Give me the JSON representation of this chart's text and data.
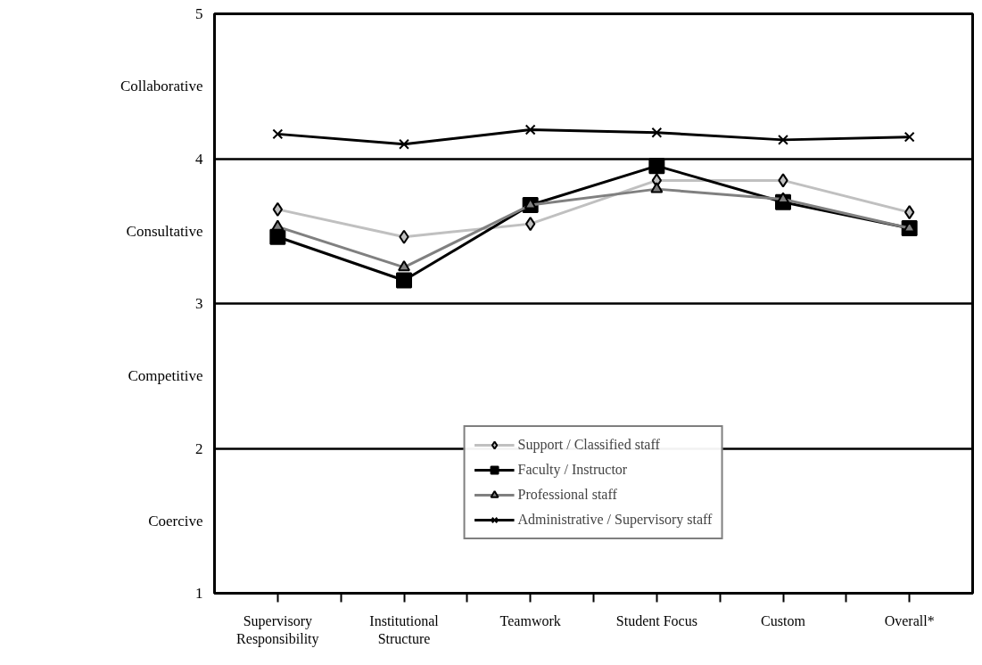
{
  "chart_data": {
    "type": "line",
    "categories": [
      "Supervisory\nResponsibility",
      "Institutional\nStructure",
      "Teamwork",
      "Student Focus",
      "Custom",
      "Overall*"
    ],
    "ylim": [
      1,
      5
    ],
    "yticks": [
      1,
      {
        "value": 1.5,
        "label": "Coercive"
      },
      2,
      {
        "value": 2.5,
        "label": "Competitive"
      },
      3,
      {
        "value": 3.5,
        "label": "Consultative"
      },
      4,
      {
        "value": 4.5,
        "label": "Collaborative"
      },
      5
    ],
    "grid": "y",
    "legend": "bottom",
    "series": [
      {
        "name": "Support / Classified staff",
        "color": "#c0c0c0",
        "marker": "diamond",
        "values": [
          3.65,
          3.46,
          3.55,
          3.85,
          3.85,
          3.63
        ]
      },
      {
        "name": "Faculty / Instructor",
        "color": "#000000",
        "marker": "square",
        "values": [
          3.46,
          3.16,
          3.68,
          3.95,
          3.7,
          3.52
        ]
      },
      {
        "name": "Professional staff",
        "color": "#808080",
        "marker": "triangle",
        "values": [
          3.53,
          3.25,
          3.68,
          3.79,
          3.72,
          3.52
        ]
      },
      {
        "name": "Administrative / Supervisory staff",
        "color": "#000000",
        "marker": "cross",
        "values": [
          4.17,
          4.1,
          4.2,
          4.18,
          4.13,
          4.15
        ]
      }
    ]
  }
}
